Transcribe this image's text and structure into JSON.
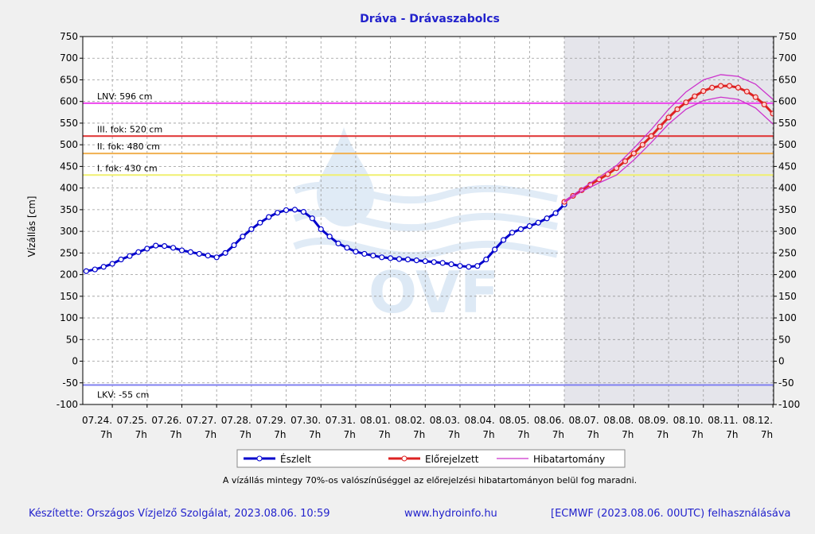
{
  "chart_data": {
    "type": "line",
    "title": "Dráva - Drávaszabolcs",
    "y_label": "Vízállás [cm]",
    "ylim": [
      -100,
      750
    ],
    "yticks": [
      -100,
      -50,
      0,
      50,
      100,
      150,
      200,
      250,
      300,
      350,
      400,
      450,
      500,
      550,
      600,
      650,
      700,
      750
    ],
    "xlim": [
      0.15,
      20.02
    ],
    "xticks": [
      {
        "value": 1,
        "label": "07.24.",
        "sublabel": "7h"
      },
      {
        "value": 2,
        "label": "07.25.",
        "sublabel": "7h"
      },
      {
        "value": 3,
        "label": "07.26.",
        "sublabel": "7h"
      },
      {
        "value": 4,
        "label": "07.27.",
        "sublabel": "7h"
      },
      {
        "value": 5,
        "label": "07.28.",
        "sublabel": "7h"
      },
      {
        "value": 6,
        "label": "07.29.",
        "sublabel": "7h"
      },
      {
        "value": 7,
        "label": "07.30.",
        "sublabel": "7h"
      },
      {
        "value": 8,
        "label": "07.31.",
        "sublabel": "7h"
      },
      {
        "value": 9,
        "label": "08.01.",
        "sublabel": "7h"
      },
      {
        "value": 10,
        "label": "08.02.",
        "sublabel": "7h"
      },
      {
        "value": 11,
        "label": "08.03.",
        "sublabel": "7h"
      },
      {
        "value": 12,
        "label": "08.04.",
        "sublabel": "7h"
      },
      {
        "value": 13,
        "label": "08.05.",
        "sublabel": "7h"
      },
      {
        "value": 14,
        "label": "08.06.",
        "sublabel": "7h"
      },
      {
        "value": 15,
        "label": "08.07.",
        "sublabel": "7h"
      },
      {
        "value": 16,
        "label": "08.08.",
        "sublabel": "7h"
      },
      {
        "value": 17,
        "label": "08.09.",
        "sublabel": "7h"
      },
      {
        "value": 18,
        "label": "08.10.",
        "sublabel": "7h"
      },
      {
        "value": 19,
        "label": "08.11.",
        "sublabel": "7h"
      },
      {
        "value": 20,
        "label": "08.12.",
        "sublabel": "7h"
      }
    ],
    "grid": true,
    "forecast_start": 14,
    "watermark": "OVF",
    "thresholds": [
      {
        "label": "LNV: 596 cm",
        "value": 596,
        "color": "#ee44ee"
      },
      {
        "label": "III. fok: 520 cm",
        "value": 520,
        "color": "#e03030"
      },
      {
        "label": "II. fok: 480 cm",
        "value": 480,
        "color": "#f0b050"
      },
      {
        "label": "I. fok: 430 cm",
        "value": 430,
        "color": "#f0f070"
      },
      {
        "label": "LKV: -55 cm",
        "value": -55,
        "color": "#8080f0"
      }
    ],
    "series": [
      {
        "name": "Észlelt",
        "color": "#0000cc",
        "x": [
          0.25,
          0.5,
          0.75,
          1,
          1.25,
          1.5,
          1.75,
          2,
          2.25,
          2.5,
          2.75,
          3,
          3.25,
          3.5,
          3.75,
          4,
          4.25,
          4.5,
          4.75,
          5,
          5.25,
          5.5,
          5.75,
          6,
          6.25,
          6.5,
          6.75,
          7,
          7.25,
          7.5,
          7.75,
          8,
          8.25,
          8.5,
          8.75,
          9,
          9.25,
          9.5,
          9.75,
          10,
          10.25,
          10.5,
          10.75,
          11,
          11.25,
          11.5,
          11.75,
          12,
          12.25,
          12.5,
          12.75,
          13,
          13.25,
          13.5,
          13.75,
          14
        ],
        "values": [
          208,
          212,
          218,
          225,
          235,
          243,
          252,
          260,
          267,
          266,
          262,
          256,
          252,
          248,
          244,
          240,
          250,
          268,
          288,
          305,
          320,
          333,
          343,
          349,
          350,
          345,
          330,
          305,
          288,
          272,
          262,
          253,
          248,
          244,
          240,
          238,
          236,
          235,
          233,
          231,
          229,
          227,
          224,
          220,
          218,
          220,
          235,
          258,
          280,
          297,
          305,
          312,
          320,
          330,
          342,
          362
        ]
      },
      {
        "name": "Előrejelzett",
        "color": "#dd2222",
        "x": [
          14,
          14.25,
          14.5,
          14.75,
          15,
          15.25,
          15.5,
          15.75,
          16,
          16.25,
          16.5,
          16.75,
          17,
          17.25,
          17.5,
          17.75,
          18,
          18.25,
          18.5,
          18.75,
          19,
          19.25,
          19.5,
          19.75,
          20
        ],
        "values": [
          368,
          382,
          395,
          408,
          420,
          432,
          446,
          462,
          480,
          500,
          520,
          542,
          563,
          582,
          598,
          612,
          624,
          632,
          636,
          636,
          632,
          623,
          610,
          593,
          572
        ]
      },
      {
        "name": "Hibatartomány",
        "color": "#cc33cc",
        "x": [
          14,
          14.5,
          15,
          15.5,
          16,
          16.5,
          17,
          17.5,
          18,
          18.5,
          19,
          19.5,
          20
        ],
        "upper": [
          370,
          398,
          425,
          452,
          492,
          535,
          582,
          622,
          650,
          662,
          658,
          640,
          605
        ],
        "lower": [
          368,
          392,
          412,
          430,
          465,
          505,
          548,
          582,
          602,
          610,
          605,
          585,
          548
        ]
      }
    ],
    "note": "A vízállás mintegy 70%-os valószínűséggel az előrejelzési hibatartományon belül fog maradni.",
    "footer": {
      "credit": "Készítette: Országos Vízjelző Szolgálat, 2023.08.06. 10:59",
      "url": "www.hydroinfo.hu",
      "source": "[ECMWF (2023.08.06. 00UTC) felhasználásáva"
    }
  }
}
